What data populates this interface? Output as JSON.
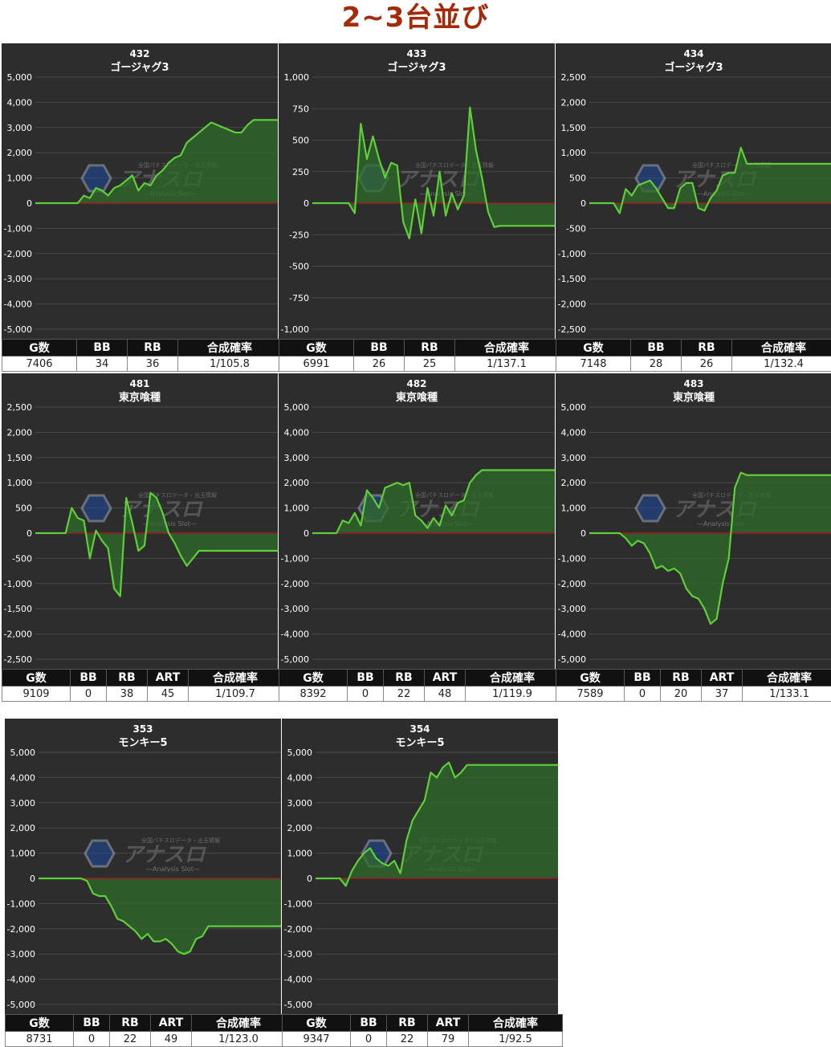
{
  "page_title": "2~3台並び",
  "watermark": {
    "main": "アナスロ",
    "sub": "—Analysis Slot—",
    "top": "全国パチスロデータ・出玉情報"
  },
  "colors": {
    "bg": "#2d2d2d",
    "grid": "#4a4a4a",
    "line": "#5ecf3a",
    "fill": "#2f6b2a",
    "zero": "#9b1c1c",
    "title": "#a52a0a"
  },
  "chart_data": [
    {
      "type": "area",
      "machine_no": "432",
      "machine_name": "ゴージャグ3",
      "ylim": [
        -5000,
        5000
      ],
      "yticks": [
        "5,000",
        "4,000",
        "3,000",
        "2,000",
        "1,000",
        "0",
        "-1,000",
        "-2,000",
        "-3,000",
        "-4,000",
        "-5,000"
      ],
      "x": [
        0,
        1,
        2,
        3,
        4,
        5,
        6,
        7,
        8,
        9,
        10,
        11,
        12,
        13,
        14,
        15,
        16,
        17,
        18,
        19,
        20,
        21,
        22,
        23,
        24,
        25,
        26,
        27,
        28,
        29,
        30,
        31,
        32,
        33,
        34,
        35,
        36,
        37,
        38,
        39,
        40
      ],
      "values": [
        0,
        0,
        0,
        0,
        0,
        0,
        0,
        0,
        300,
        200,
        600,
        500,
        300,
        600,
        700,
        900,
        1100,
        500,
        800,
        700,
        1100,
        1300,
        1600,
        1800,
        1900,
        2400,
        2600,
        2800,
        3000,
        3200,
        3100,
        3000,
        2900,
        2800,
        2800,
        3100,
        3300,
        3300,
        3300,
        3300,
        3300
      ],
      "headers": [
        "G数",
        "BB",
        "RB",
        "合成確率"
      ],
      "stats": [
        "7406",
        "34",
        "36",
        "1/105.8"
      ]
    },
    {
      "type": "area",
      "machine_no": "433",
      "machine_name": "ゴージャグ3",
      "ylim": [
        -1000,
        1000
      ],
      "yticks": [
        "1,000",
        "750",
        "500",
        "250",
        "0",
        "-250",
        "-500",
        "-750",
        "-1,000"
      ],
      "x": [
        0,
        1,
        2,
        3,
        4,
        5,
        6,
        7,
        8,
        9,
        10,
        11,
        12,
        13,
        14,
        15,
        16,
        17,
        18,
        19,
        20,
        21,
        22,
        23,
        24,
        25,
        26,
        27,
        28,
        29,
        30,
        31,
        32,
        33,
        34,
        35,
        36,
        37,
        38,
        39,
        40
      ],
      "values": [
        0,
        0,
        0,
        0,
        0,
        0,
        0,
        -80,
        630,
        350,
        530,
        350,
        200,
        320,
        300,
        -150,
        -280,
        30,
        -240,
        120,
        -100,
        250,
        -100,
        80,
        -50,
        60,
        760,
        420,
        200,
        -70,
        -190,
        -180,
        -180,
        -180,
        -180,
        -180,
        -180,
        -180,
        -180,
        -180,
        -180
      ],
      "headers": [
        "G数",
        "BB",
        "RB",
        "合成確率"
      ],
      "stats": [
        "6991",
        "26",
        "25",
        "1/137.1"
      ]
    },
    {
      "type": "area",
      "machine_no": "434",
      "machine_name": "ゴージャグ3",
      "ylim": [
        -2500,
        2500
      ],
      "yticks": [
        "2,500",
        "2,000",
        "1,500",
        "1,000",
        "500",
        "0",
        "-500",
        "-1,000",
        "-1,500",
        "-2,000",
        "-2,500"
      ],
      "x": [
        0,
        1,
        2,
        3,
        4,
        5,
        6,
        7,
        8,
        9,
        10,
        11,
        12,
        13,
        14,
        15,
        16,
        17,
        18,
        19,
        20,
        21,
        22,
        23,
        24,
        25,
        26,
        27,
        28,
        29,
        30,
        31,
        32,
        33,
        34,
        35,
        36,
        37,
        38,
        39,
        40
      ],
      "values": [
        0,
        0,
        0,
        0,
        0,
        -200,
        280,
        150,
        350,
        400,
        450,
        300,
        100,
        -100,
        -100,
        300,
        400,
        400,
        -100,
        -150,
        100,
        250,
        550,
        600,
        600,
        1100,
        780,
        780,
        780,
        780,
        780,
        780,
        780,
        780,
        780,
        780,
        780,
        780,
        780,
        780,
        780
      ],
      "headers": [
        "G数",
        "BB",
        "RB",
        "合成確率"
      ],
      "stats": [
        "7148",
        "28",
        "26",
        "1/132.4"
      ]
    },
    {
      "type": "area",
      "machine_no": "481",
      "machine_name": "東京喰種",
      "ylim": [
        -2500,
        2500
      ],
      "yticks": [
        "2,500",
        "2,000",
        "1,500",
        "1,000",
        "500",
        "0",
        "-500",
        "-1,000",
        "-1,500",
        "-2,000",
        "-2,500"
      ],
      "x": [
        0,
        1,
        2,
        3,
        4,
        5,
        6,
        7,
        8,
        9,
        10,
        11,
        12,
        13,
        14,
        15,
        16,
        17,
        18,
        19,
        20,
        21,
        22,
        23,
        24,
        25,
        26,
        27,
        28,
        29,
        30,
        31,
        32,
        33,
        34,
        35,
        36,
        37,
        38,
        39,
        40
      ],
      "values": [
        0,
        0,
        0,
        0,
        0,
        0,
        500,
        300,
        250,
        -500,
        50,
        -150,
        -300,
        -1100,
        -1250,
        700,
        200,
        -350,
        -250,
        800,
        700,
        400,
        0,
        -200,
        -450,
        -650,
        -500,
        -350,
        -350,
        -350,
        -350,
        -350,
        -350,
        -350,
        -350,
        -350,
        -350,
        -350,
        -350,
        -350,
        -350
      ],
      "headers": [
        "G数",
        "BB",
        "RB",
        "ART",
        "合成確率"
      ],
      "stats": [
        "9109",
        "0",
        "38",
        "45",
        "1/109.7"
      ]
    },
    {
      "type": "area",
      "machine_no": "482",
      "machine_name": "東京喰種",
      "ylim": [
        -5000,
        5000
      ],
      "yticks": [
        "5,000",
        "4,000",
        "3,000",
        "2,000",
        "1,000",
        "0",
        "-1,000",
        "-2,000",
        "-3,000",
        "-4,000",
        "-5,000"
      ],
      "x": [
        0,
        1,
        2,
        3,
        4,
        5,
        6,
        7,
        8,
        9,
        10,
        11,
        12,
        13,
        14,
        15,
        16,
        17,
        18,
        19,
        20,
        21,
        22,
        23,
        24,
        25,
        26,
        27,
        28,
        29,
        30,
        31,
        32,
        33,
        34,
        35,
        36,
        37,
        38,
        39,
        40
      ],
      "values": [
        0,
        0,
        0,
        0,
        0,
        500,
        400,
        800,
        300,
        1700,
        1400,
        1000,
        1800,
        1900,
        2000,
        1900,
        2000,
        700,
        500,
        200,
        600,
        300,
        1100,
        700,
        1200,
        1300,
        2000,
        2300,
        2500,
        2500,
        2500,
        2500,
        2500,
        2500,
        2500,
        2500,
        2500,
        2500,
        2500,
        2500,
        2500
      ],
      "headers": [
        "G数",
        "BB",
        "RB",
        "ART",
        "合成確率"
      ],
      "stats": [
        "8392",
        "0",
        "22",
        "48",
        "1/119.9"
      ]
    },
    {
      "type": "area",
      "machine_no": "483",
      "machine_name": "東京喰種",
      "ylim": [
        -5000,
        5000
      ],
      "yticks": [
        "5,000",
        "4,000",
        "3,000",
        "2,000",
        "1,000",
        "0",
        "-1,000",
        "-2,000",
        "-3,000",
        "-4,000",
        "-5,000"
      ],
      "x": [
        0,
        1,
        2,
        3,
        4,
        5,
        6,
        7,
        8,
        9,
        10,
        11,
        12,
        13,
        14,
        15,
        16,
        17,
        18,
        19,
        20,
        21,
        22,
        23,
        24,
        25,
        26,
        27,
        28,
        29,
        30,
        31,
        32,
        33,
        34,
        35,
        36,
        37,
        38,
        39,
        40
      ],
      "values": [
        0,
        0,
        0,
        0,
        0,
        0,
        -200,
        -500,
        -300,
        -400,
        -800,
        -1400,
        -1300,
        -1500,
        -1400,
        -1600,
        -2200,
        -2500,
        -2600,
        -3000,
        -3600,
        -3400,
        -2000,
        -1000,
        1800,
        2400,
        2300,
        2300,
        2300,
        2300,
        2300,
        2300,
        2300,
        2300,
        2300,
        2300,
        2300,
        2300,
        2300,
        2300,
        2300
      ],
      "headers": [
        "G数",
        "BB",
        "RB",
        "ART",
        "合成確率"
      ],
      "stats": [
        "7589",
        "0",
        "20",
        "37",
        "1/133.1"
      ]
    },
    {
      "type": "area",
      "machine_no": "353",
      "machine_name": "モンキー5",
      "ylim": [
        -5000,
        5000
      ],
      "yticks": [
        "5,000",
        "4,000",
        "3,000",
        "2,000",
        "1,000",
        "0",
        "-1,000",
        "-2,000",
        "-3,000",
        "-4,000",
        "-5,000"
      ],
      "x": [
        0,
        1,
        2,
        3,
        4,
        5,
        6,
        7,
        8,
        9,
        10,
        11,
        12,
        13,
        14,
        15,
        16,
        17,
        18,
        19,
        20,
        21,
        22,
        23,
        24,
        25,
        26,
        27,
        28,
        29,
        30,
        31,
        32,
        33,
        34,
        35,
        36,
        37,
        38,
        39,
        40
      ],
      "values": [
        0,
        0,
        0,
        0,
        0,
        0,
        0,
        0,
        -100,
        -600,
        -700,
        -700,
        -1100,
        -1600,
        -1700,
        -1900,
        -2100,
        -2400,
        -2200,
        -2500,
        -2500,
        -2400,
        -2600,
        -2900,
        -3000,
        -2900,
        -2400,
        -2300,
        -1900,
        -1900,
        -1900,
        -1900,
        -1900,
        -1900,
        -1900,
        -1900,
        -1900,
        -1900,
        -1900,
        -1900,
        -1900
      ],
      "headers": [
        "G数",
        "BB",
        "RB",
        "ART",
        "合成確率"
      ],
      "stats": [
        "8731",
        "0",
        "22",
        "49",
        "1/123.0"
      ]
    },
    {
      "type": "area",
      "machine_no": "354",
      "machine_name": "モンキー5",
      "ylim": [
        -5000,
        5000
      ],
      "yticks": [
        "5,000",
        "4,000",
        "3,000",
        "2,000",
        "1,000",
        "0",
        "-1,000",
        "-2,000",
        "-3,000",
        "-4,000",
        "-5,000"
      ],
      "x": [
        0,
        1,
        2,
        3,
        4,
        5,
        6,
        7,
        8,
        9,
        10,
        11,
        12,
        13,
        14,
        15,
        16,
        17,
        18,
        19,
        20,
        21,
        22,
        23,
        24,
        25,
        26,
        27,
        28,
        29,
        30,
        31,
        32,
        33,
        34,
        35,
        36,
        37,
        38,
        39,
        40
      ],
      "values": [
        0,
        0,
        0,
        0,
        0,
        -300,
        300,
        700,
        1000,
        1200,
        800,
        600,
        500,
        700,
        200,
        1500,
        2300,
        2700,
        3100,
        4200,
        4000,
        4400,
        4600,
        4000,
        4200,
        4500,
        4500,
        4500,
        4500,
        4500,
        4500,
        4500,
        4500,
        4500,
        4500,
        4500,
        4500,
        4500,
        4500,
        4500,
        4500
      ],
      "headers": [
        "G数",
        "BB",
        "RB",
        "ART",
        "合成確率"
      ],
      "stats": [
        "9347",
        "0",
        "22",
        "79",
        "1/92.5"
      ]
    }
  ]
}
